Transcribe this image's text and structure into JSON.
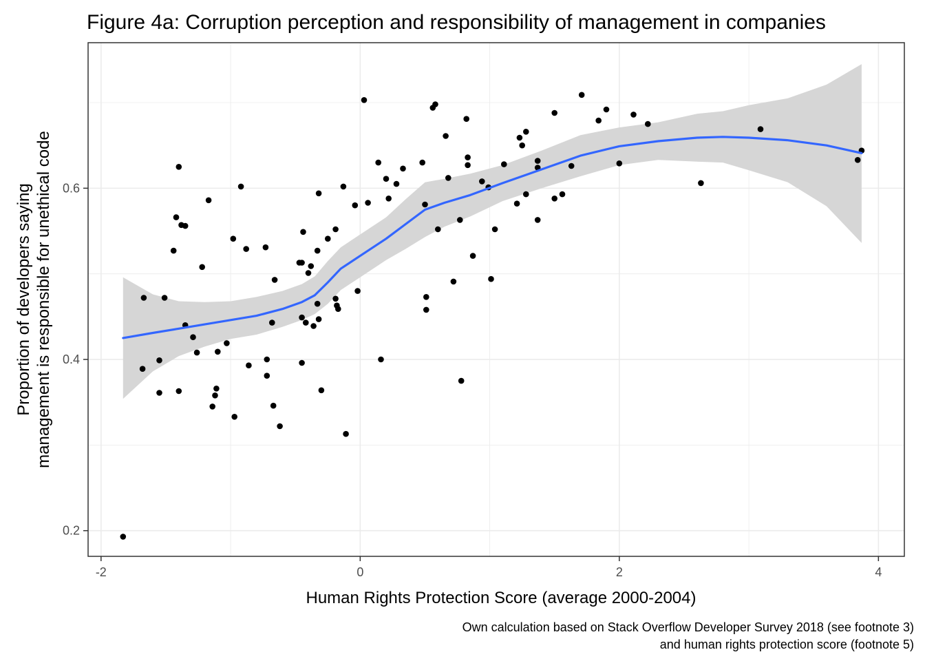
{
  "chart_data": {
    "type": "scatter",
    "title": "Figure 4a: Corruption perception and responsibility of management in companies",
    "xlabel": "Human Rights Protection Score (average 2000-2004)",
    "ylabel_lines": [
      "Proportion of developers saying",
      "management is responsible for unethical code"
    ],
    "caption_lines": [
      "Own calculation based on Stack Overflow Developer Survey 2018 (see footnote 3)",
      "and human rights protection score (footnote 5)"
    ],
    "xlim": [
      -2.1,
      4.2
    ],
    "ylim": [
      0.17,
      0.77
    ],
    "x_ticks": [
      -2,
      0,
      2,
      4
    ],
    "x_tick_labels": [
      "-2",
      "0",
      "2",
      "4"
    ],
    "y_ticks": [
      0.2,
      0.4,
      0.6
    ],
    "y_tick_labels": [
      "0.2",
      "0.4",
      "0.6"
    ],
    "grid": true,
    "colors": {
      "points": "#000000",
      "smooth": "#3366ff",
      "ribbon": "#d6d6d6",
      "grid": "#ebebeb",
      "panel_border": "#333333"
    },
    "points": [
      [
        -1.83,
        0.193
      ],
      [
        -1.68,
        0.389
      ],
      [
        -1.67,
        0.472
      ],
      [
        -1.55,
        0.399
      ],
      [
        -1.55,
        0.361
      ],
      [
        -1.51,
        0.472
      ],
      [
        -1.44,
        0.527
      ],
      [
        -1.42,
        0.566
      ],
      [
        -1.4,
        0.625
      ],
      [
        -1.4,
        0.363
      ],
      [
        -1.38,
        0.557
      ],
      [
        -1.35,
        0.556
      ],
      [
        -1.35,
        0.44
      ],
      [
        -1.29,
        0.426
      ],
      [
        -1.26,
        0.408
      ],
      [
        -1.22,
        0.508
      ],
      [
        -1.17,
        0.586
      ],
      [
        -1.14,
        0.345
      ],
      [
        -1.12,
        0.358
      ],
      [
        -1.11,
        0.366
      ],
      [
        -1.1,
        0.409
      ],
      [
        -1.03,
        0.419
      ],
      [
        -0.98,
        0.541
      ],
      [
        -0.97,
        0.333
      ],
      [
        -0.92,
        0.602
      ],
      [
        -0.88,
        0.529
      ],
      [
        -0.86,
        0.393
      ],
      [
        -0.73,
        0.531
      ],
      [
        -0.72,
        0.4
      ],
      [
        -0.72,
        0.381
      ],
      [
        -0.68,
        0.443
      ],
      [
        -0.67,
        0.346
      ],
      [
        -0.66,
        0.493
      ],
      [
        -0.62,
        0.322
      ],
      [
        -0.47,
        0.513
      ],
      [
        -0.45,
        0.513
      ],
      [
        -0.45,
        0.449
      ],
      [
        -0.45,
        0.396
      ],
      [
        -0.44,
        0.549
      ],
      [
        -0.42,
        0.443
      ],
      [
        -0.4,
        0.501
      ],
      [
        -0.38,
        0.509
      ],
      [
        -0.36,
        0.439
      ],
      [
        -0.33,
        0.527
      ],
      [
        -0.33,
        0.465
      ],
      [
        -0.32,
        0.594
      ],
      [
        -0.32,
        0.447
      ],
      [
        -0.3,
        0.364
      ],
      [
        -0.25,
        0.541
      ],
      [
        -0.19,
        0.552
      ],
      [
        -0.19,
        0.471
      ],
      [
        -0.18,
        0.463
      ],
      [
        -0.17,
        0.459
      ],
      [
        -0.13,
        0.602
      ],
      [
        -0.11,
        0.313
      ],
      [
        -0.04,
        0.58
      ],
      [
        -0.02,
        0.48
      ],
      [
        0.03,
        0.703
      ],
      [
        0.06,
        0.583
      ],
      [
        0.14,
        0.63
      ],
      [
        0.16,
        0.4
      ],
      [
        0.2,
        0.611
      ],
      [
        0.22,
        0.588
      ],
      [
        0.28,
        0.605
      ],
      [
        0.33,
        0.623
      ],
      [
        0.48,
        0.63
      ],
      [
        0.5,
        0.581
      ],
      [
        0.51,
        0.473
      ],
      [
        0.51,
        0.458
      ],
      [
        0.56,
        0.694
      ],
      [
        0.58,
        0.698
      ],
      [
        0.6,
        0.552
      ],
      [
        0.66,
        0.661
      ],
      [
        0.68,
        0.612
      ],
      [
        0.72,
        0.491
      ],
      [
        0.77,
        0.563
      ],
      [
        0.78,
        0.375
      ],
      [
        0.82,
        0.681
      ],
      [
        0.83,
        0.636
      ],
      [
        0.83,
        0.627
      ],
      [
        0.87,
        0.521
      ],
      [
        0.94,
        0.608
      ],
      [
        0.99,
        0.601
      ],
      [
        1.01,
        0.494
      ],
      [
        1.04,
        0.552
      ],
      [
        1.11,
        0.628
      ],
      [
        1.21,
        0.582
      ],
      [
        1.23,
        0.659
      ],
      [
        1.25,
        0.65
      ],
      [
        1.28,
        0.666
      ],
      [
        1.28,
        0.593
      ],
      [
        1.37,
        0.632
      ],
      [
        1.37,
        0.624
      ],
      [
        1.37,
        0.563
      ],
      [
        1.5,
        0.588
      ],
      [
        1.5,
        0.688
      ],
      [
        1.56,
        0.593
      ],
      [
        1.63,
        0.626
      ],
      [
        1.71,
        0.709
      ],
      [
        1.84,
        0.679
      ],
      [
        1.9,
        0.692
      ],
      [
        2.0,
        0.629
      ],
      [
        2.11,
        0.686
      ],
      [
        2.22,
        0.675
      ],
      [
        2.63,
        0.606
      ],
      [
        3.09,
        0.669
      ],
      [
        3.84,
        0.633
      ],
      [
        3.87,
        0.644
      ]
    ],
    "smooth": [
      [
        -1.83,
        0.425
      ],
      [
        -1.6,
        0.431
      ],
      [
        -1.4,
        0.436
      ],
      [
        -1.2,
        0.441
      ],
      [
        -1.0,
        0.446
      ],
      [
        -0.8,
        0.451
      ],
      [
        -0.6,
        0.459
      ],
      [
        -0.45,
        0.467
      ],
      [
        -0.35,
        0.475
      ],
      [
        -0.25,
        0.49
      ],
      [
        -0.15,
        0.506
      ],
      [
        0.0,
        0.521
      ],
      [
        0.2,
        0.541
      ],
      [
        0.35,
        0.558
      ],
      [
        0.5,
        0.575
      ],
      [
        0.65,
        0.583
      ],
      [
        0.85,
        0.592
      ],
      [
        1.1,
        0.606
      ],
      [
        1.4,
        0.622
      ],
      [
        1.7,
        0.638
      ],
      [
        2.0,
        0.649
      ],
      [
        2.3,
        0.655
      ],
      [
        2.6,
        0.659
      ],
      [
        2.8,
        0.66
      ],
      [
        3.0,
        0.659
      ],
      [
        3.3,
        0.656
      ],
      [
        3.6,
        0.65
      ],
      [
        3.87,
        0.641
      ]
    ],
    "ribbon_upper": [
      [
        -1.83,
        0.496
      ],
      [
        -1.6,
        0.476
      ],
      [
        -1.4,
        0.468
      ],
      [
        -1.2,
        0.467
      ],
      [
        -1.0,
        0.468
      ],
      [
        -0.8,
        0.473
      ],
      [
        -0.6,
        0.48
      ],
      [
        -0.45,
        0.488
      ],
      [
        -0.35,
        0.497
      ],
      [
        -0.25,
        0.515
      ],
      [
        -0.15,
        0.531
      ],
      [
        0.0,
        0.546
      ],
      [
        0.2,
        0.566
      ],
      [
        0.35,
        0.587
      ],
      [
        0.5,
        0.607
      ],
      [
        0.65,
        0.611
      ],
      [
        0.85,
        0.617
      ],
      [
        1.1,
        0.627
      ],
      [
        1.4,
        0.644
      ],
      [
        1.7,
        0.662
      ],
      [
        2.0,
        0.671
      ],
      [
        2.3,
        0.677
      ],
      [
        2.6,
        0.687
      ],
      [
        2.8,
        0.69
      ],
      [
        3.0,
        0.697
      ],
      [
        3.3,
        0.705
      ],
      [
        3.6,
        0.721
      ],
      [
        3.87,
        0.745
      ]
    ],
    "ribbon_lower": [
      [
        -1.83,
        0.354
      ],
      [
        -1.6,
        0.386
      ],
      [
        -1.4,
        0.404
      ],
      [
        -1.2,
        0.415
      ],
      [
        -1.0,
        0.424
      ],
      [
        -0.8,
        0.429
      ],
      [
        -0.6,
        0.438
      ],
      [
        -0.45,
        0.446
      ],
      [
        -0.35,
        0.453
      ],
      [
        -0.25,
        0.465
      ],
      [
        -0.15,
        0.481
      ],
      [
        0.0,
        0.496
      ],
      [
        0.2,
        0.516
      ],
      [
        0.35,
        0.529
      ],
      [
        0.5,
        0.543
      ],
      [
        0.65,
        0.555
      ],
      [
        0.85,
        0.567
      ],
      [
        1.1,
        0.585
      ],
      [
        1.4,
        0.6
      ],
      [
        1.7,
        0.614
      ],
      [
        2.0,
        0.627
      ],
      [
        2.3,
        0.633
      ],
      [
        2.6,
        0.631
      ],
      [
        2.8,
        0.63
      ],
      [
        3.0,
        0.621
      ],
      [
        3.3,
        0.607
      ],
      [
        3.6,
        0.579
      ],
      [
        3.87,
        0.536
      ]
    ]
  }
}
